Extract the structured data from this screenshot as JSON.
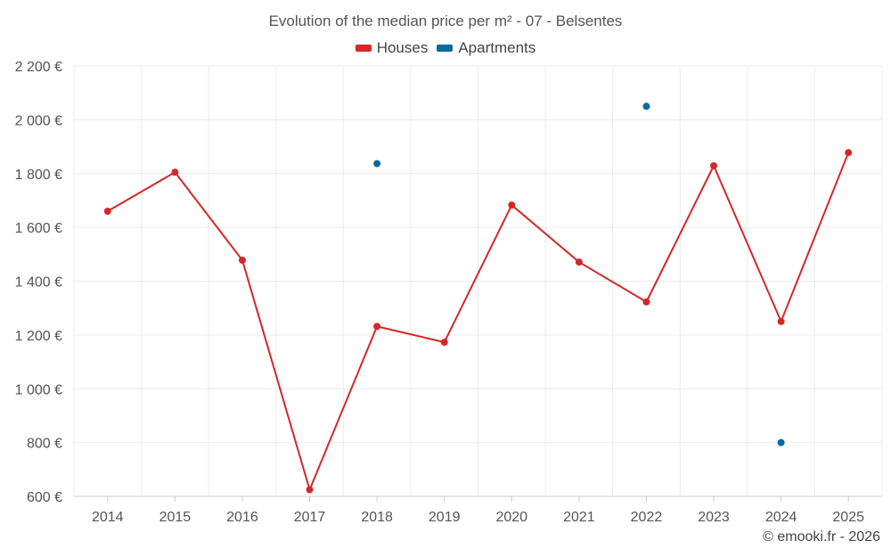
{
  "chart_data": {
    "type": "line",
    "title": "Evolution of the median price per m² - 07 - Belsentes",
    "categories": [
      "2014",
      "2015",
      "2016",
      "2017",
      "2018",
      "2019",
      "2020",
      "2021",
      "2022",
      "2023",
      "2024",
      "2025"
    ],
    "series": [
      {
        "name": "Houses",
        "color": "#d62728",
        "values": [
          1660,
          1805,
          1478,
          625,
          1232,
          1173,
          1683,
          1471,
          1323,
          1829,
          1250,
          1878
        ]
      },
      {
        "name": "Apartments",
        "color": "#0a6aa1",
        "values": [
          null,
          null,
          null,
          null,
          1837,
          null,
          null,
          null,
          2050,
          null,
          800,
          null
        ]
      }
    ],
    "yticks": [
      600,
      800,
      1000,
      1200,
      1400,
      1600,
      1800,
      2000,
      2200
    ],
    "ytick_labels": [
      "600 €",
      "800 €",
      "1 000 €",
      "1 200 €",
      "1 400 €",
      "1 600 €",
      "1 800 €",
      "2 000 €",
      "2 200 €"
    ],
    "ylim": [
      600,
      2200
    ],
    "xlabel": "",
    "ylabel": "",
    "grid": true,
    "legend_position": "top-center"
  },
  "credit": "© emooki.fr - 2026"
}
